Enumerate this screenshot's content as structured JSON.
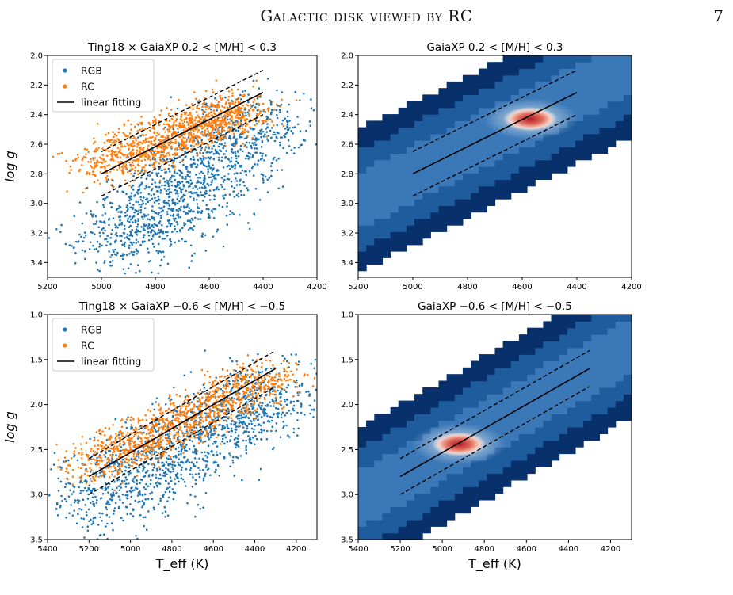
{
  "header": {
    "running_head": "Galactic disk viewed by RC",
    "page_number": "7"
  },
  "colors": {
    "rgb": "#1f77b4",
    "rc": "#ff7f0e",
    "fit": "#000000",
    "density_low": "#08306b",
    "density_mid": "#f7f7f7",
    "density_high": "#b2182b"
  },
  "chart_data": [
    {
      "type": "scatter",
      "title": "Ting18 × GaiaXP 0.2 < [M/H] < 0.3",
      "xlabel": "",
      "ylabel": "log g",
      "xlim": [
        5200,
        4200
      ],
      "ylim": [
        3.5,
        2.0
      ],
      "xticks": [
        "5200",
        "5000",
        "4800",
        "4600",
        "4400",
        "4200"
      ],
      "yticks": [
        "2.0",
        "2.2",
        "2.4",
        "2.6",
        "2.8",
        "3.0",
        "3.2",
        "3.4"
      ],
      "legend": [
        "RGB",
        "RC",
        "linear fitting"
      ],
      "legend_position": "top-left",
      "series": [
        {
          "name": "RGB",
          "cluster": {
            "x": [
              4950,
              4400
            ],
            "y": [
              3.3,
              2.4
            ],
            "spread_x": 120,
            "spread_y": 0.12
          }
        },
        {
          "name": "RC",
          "cluster": {
            "x": [
              5000,
              4450
            ],
            "y": [
              2.75,
              2.35
            ],
            "spread_x": 80,
            "spread_y": 0.07
          }
        }
      ],
      "fit": {
        "name": "linear fitting",
        "x": [
          5000,
          4400
        ],
        "y": [
          2.8,
          2.25
        ],
        "band_offset": 0.15
      }
    },
    {
      "type": "heatmap",
      "title": "GaiaXP 0.2 < [M/H] < 0.3",
      "xlabel": "",
      "ylabel": "",
      "xlim": [
        5200,
        4200
      ],
      "ylim": [
        3.5,
        2.0
      ],
      "xticks": [
        "5200",
        "5000",
        "4800",
        "4600",
        "4400",
        "4200"
      ],
      "yticks": [
        "2.0",
        "2.2",
        "2.4",
        "2.6",
        "2.8",
        "3.0",
        "3.2",
        "3.4"
      ],
      "peak": {
        "x": 4570,
        "y": 2.43
      },
      "fit": {
        "x": [
          5000,
          4400
        ],
        "y": [
          2.8,
          2.25
        ],
        "band_offset": 0.15
      }
    },
    {
      "type": "scatter",
      "title": "Ting18 × GaiaXP −0.6 < [M/H] < −0.5",
      "xlabel": "T_eff (K)",
      "ylabel": "log g",
      "xlim": [
        5400,
        4100
      ],
      "ylim": [
        3.5,
        1.0
      ],
      "xticks": [
        "5400",
        "5200",
        "5000",
        "4800",
        "4600",
        "4400",
        "4200"
      ],
      "yticks": [
        "1.0",
        "1.5",
        "2.0",
        "2.5",
        "3.0",
        "3.5"
      ],
      "legend": [
        "RGB",
        "RC",
        "linear fitting"
      ],
      "legend_position": "top-left",
      "series": [
        {
          "name": "RGB",
          "cluster": {
            "x": [
              5200,
              4250
            ],
            "y": [
              3.1,
              1.8
            ],
            "spread_x": 140,
            "spread_y": 0.22
          }
        },
        {
          "name": "RC",
          "cluster": {
            "x": [
              5200,
              4300
            ],
            "y": [
              2.7,
              1.65
            ],
            "spread_x": 90,
            "spread_y": 0.12
          }
        }
      ],
      "fit": {
        "name": "linear fitting",
        "x": [
          5200,
          4300
        ],
        "y": [
          2.8,
          1.6
        ],
        "band_offset": 0.2
      }
    },
    {
      "type": "heatmap",
      "title": "GaiaXP −0.6 < [M/H] < −0.5",
      "xlabel": "T_eff (K)",
      "ylabel": "",
      "xlim": [
        5400,
        4100
      ],
      "ylim": [
        3.5,
        1.0
      ],
      "xticks": [
        "5400",
        "5200",
        "5000",
        "4800",
        "4600",
        "4400",
        "4200"
      ],
      "yticks": [
        "1.0",
        "1.5",
        "2.0",
        "2.5",
        "3.0",
        "3.5"
      ],
      "peak": {
        "x": 4920,
        "y": 2.44
      },
      "fit": {
        "x": [
          5200,
          4300
        ],
        "y": [
          2.8,
          1.6
        ],
        "band_offset": 0.2
      }
    }
  ]
}
